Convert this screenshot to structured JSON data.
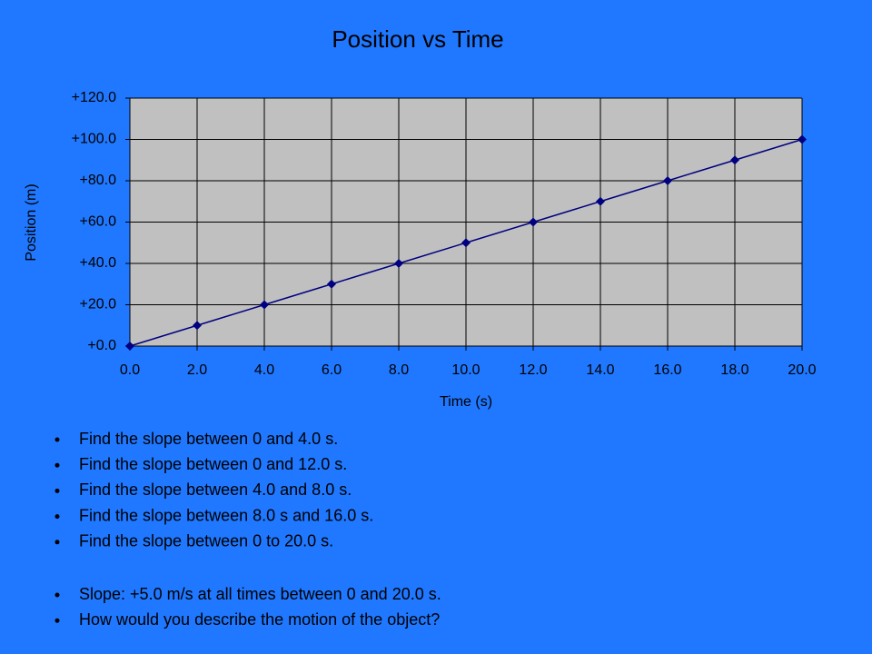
{
  "chart_data": {
    "type": "line",
    "title": "Position vs Time",
    "xlabel": "Time (s)",
    "ylabel": "Position (m)",
    "x": [
      0,
      2,
      4,
      6,
      8,
      10,
      12,
      14,
      16,
      18,
      20
    ],
    "series": [
      {
        "color": "#000080",
        "values": [
          0,
          10,
          20,
          30,
          40,
          50,
          60,
          70,
          80,
          90,
          100
        ]
      }
    ],
    "xlim": [
      0,
      20
    ],
    "ylim": [
      0,
      120
    ],
    "xticks": [
      {
        "value": 0,
        "label": "0.0"
      },
      {
        "value": 2,
        "label": "2.0"
      },
      {
        "value": 4,
        "label": "4.0"
      },
      {
        "value": 6,
        "label": "6.0"
      },
      {
        "value": 8,
        "label": "8.0"
      },
      {
        "value": 10,
        "label": "10.0"
      },
      {
        "value": 12,
        "label": "12.0"
      },
      {
        "value": 14,
        "label": "14.0"
      },
      {
        "value": 16,
        "label": "16.0"
      },
      {
        "value": 18,
        "label": "18.0"
      },
      {
        "value": 20,
        "label": "20.0"
      }
    ],
    "yticks": [
      {
        "value": 0,
        "label": "+0.0"
      },
      {
        "value": 20,
        "label": "+20.0"
      },
      {
        "value": 40,
        "label": "+40.0"
      },
      {
        "value": 60,
        "label": "+60.0"
      },
      {
        "value": 80,
        "label": "+80.0"
      },
      {
        "value": 100,
        "label": "+100.0"
      },
      {
        "value": 120,
        "label": "+120.0"
      }
    ],
    "grid": true
  },
  "bullet_groups": [
    [
      "Find the slope between 0 and 4.0 s.",
      "Find the slope between 0 and 12.0 s.",
      "Find the slope between 4.0 and 8.0 s.",
      "Find the slope between 8.0 s and 16.0 s.",
      "Find the slope between 0 to 20.0 s."
    ],
    [
      "Slope:  +5.0 m/s at all times between 0 and 20.0 s.",
      "How would you describe the motion of the object?"
    ]
  ]
}
